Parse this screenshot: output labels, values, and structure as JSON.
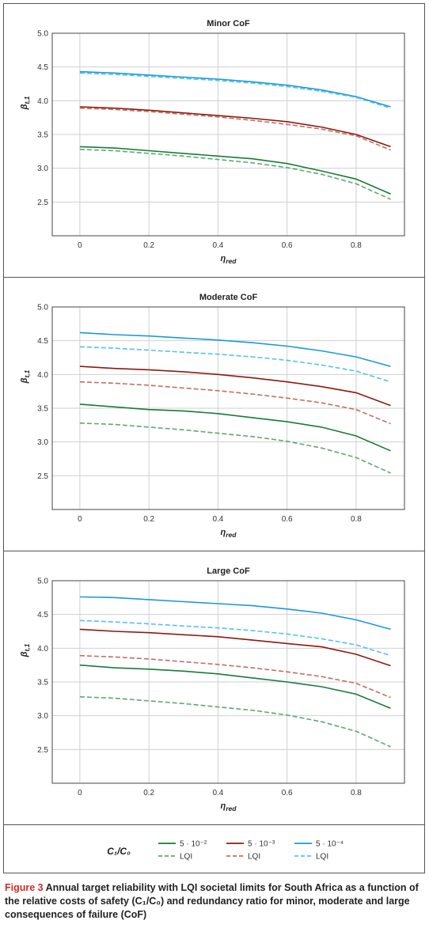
{
  "colors": {
    "green": "#1a7a3a",
    "green_lqi": "#5fa870",
    "red": "#8c1a10",
    "red_lqi": "#c07060",
    "blue": "#1a9ad9",
    "blue_lqi": "#55c0ee",
    "grid": "#cfcfcf",
    "caption_label": "#d12a2a"
  },
  "chart_data": [
    {
      "type": "line",
      "title": "Minor CoF",
      "xlabel": "η_red",
      "ylabel": "β_t,1",
      "xlim": [
        -0.08,
        0.94
      ],
      "ylim": [
        2.0,
        5.0
      ],
      "x_ticks": [
        "0",
        "0.2",
        "0.4",
        "0.6",
        "0.8"
      ],
      "y_ticks": [
        "2.5",
        "3.0",
        "3.5",
        "4.0",
        "4.5",
        "5.0"
      ],
      "grid": true,
      "x": [
        0,
        0.1,
        0.2,
        0.3,
        0.4,
        0.5,
        0.6,
        0.7,
        0.8,
        0.9
      ],
      "series": [
        {
          "name": "5 · 10⁻²",
          "style": "solid",
          "color": "green",
          "values": [
            3.32,
            3.3,
            3.26,
            3.22,
            3.18,
            3.14,
            3.07,
            2.96,
            2.84,
            2.62
          ]
        },
        {
          "name": "LQI",
          "style": "dashed",
          "color": "green_lqi",
          "values": [
            3.28,
            3.26,
            3.22,
            3.18,
            3.13,
            3.08,
            3.01,
            2.91,
            2.77,
            2.54
          ]
        },
        {
          "name": "5 · 10⁻³",
          "style": "solid",
          "color": "red",
          "values": [
            3.91,
            3.89,
            3.86,
            3.82,
            3.78,
            3.74,
            3.69,
            3.61,
            3.5,
            3.32
          ]
        },
        {
          "name": "LQI",
          "style": "dashed",
          "color": "red_lqi",
          "values": [
            3.89,
            3.87,
            3.84,
            3.8,
            3.76,
            3.71,
            3.65,
            3.58,
            3.48,
            3.27
          ]
        },
        {
          "name": "5 · 10⁻⁴",
          "style": "solid",
          "color": "blue",
          "values": [
            4.43,
            4.41,
            4.38,
            4.35,
            4.32,
            4.28,
            4.23,
            4.16,
            4.06,
            3.91
          ]
        },
        {
          "name": "LQI",
          "style": "dashed",
          "color": "blue_lqi",
          "values": [
            4.41,
            4.39,
            4.36,
            4.33,
            4.3,
            4.26,
            4.21,
            4.14,
            4.05,
            3.89
          ]
        }
      ]
    },
    {
      "type": "line",
      "title": "Moderate CoF",
      "xlabel": "η_red",
      "ylabel": "β_t,1",
      "xlim": [
        -0.08,
        0.94
      ],
      "ylim": [
        2.0,
        5.0
      ],
      "x_ticks": [
        "0",
        "0.2",
        "0.4",
        "0.6",
        "0.8"
      ],
      "y_ticks": [
        "2.5",
        "3.0",
        "3.5",
        "4.0",
        "4.5",
        "5.0"
      ],
      "grid": true,
      "x": [
        0,
        0.1,
        0.2,
        0.3,
        0.4,
        0.5,
        0.6,
        0.7,
        0.8,
        0.9
      ],
      "series": [
        {
          "name": "5 · 10⁻²",
          "style": "solid",
          "color": "green",
          "values": [
            3.56,
            3.52,
            3.48,
            3.46,
            3.42,
            3.36,
            3.3,
            3.22,
            3.09,
            2.87
          ]
        },
        {
          "name": "LQI",
          "style": "dashed",
          "color": "green_lqi",
          "values": [
            3.28,
            3.26,
            3.22,
            3.18,
            3.13,
            3.08,
            3.01,
            2.91,
            2.77,
            2.54
          ]
        },
        {
          "name": "5 · 10⁻³",
          "style": "solid",
          "color": "red",
          "values": [
            4.12,
            4.09,
            4.07,
            4.04,
            4.0,
            3.95,
            3.89,
            3.82,
            3.73,
            3.54
          ]
        },
        {
          "name": "LQI",
          "style": "dashed",
          "color": "red_lqi",
          "values": [
            3.89,
            3.87,
            3.84,
            3.8,
            3.76,
            3.71,
            3.65,
            3.58,
            3.48,
            3.27
          ]
        },
        {
          "name": "5 · 10⁻⁴",
          "style": "solid",
          "color": "blue",
          "values": [
            4.62,
            4.59,
            4.57,
            4.54,
            4.51,
            4.47,
            4.42,
            4.35,
            4.26,
            4.12
          ]
        },
        {
          "name": "LQI",
          "style": "dashed",
          "color": "blue_lqi",
          "values": [
            4.41,
            4.39,
            4.36,
            4.33,
            4.3,
            4.26,
            4.21,
            4.14,
            4.05,
            3.89
          ]
        }
      ]
    },
    {
      "type": "line",
      "title": "Large CoF",
      "xlabel": "η_red",
      "ylabel": "β_t,1",
      "xlim": [
        -0.08,
        0.94
      ],
      "ylim": [
        2.0,
        5.0
      ],
      "x_ticks": [
        "0",
        "0.2",
        "0.4",
        "0.6",
        "0.8"
      ],
      "y_ticks": [
        "2.5",
        "3.0",
        "3.5",
        "4.0",
        "4.5",
        "5.0"
      ],
      "grid": true,
      "x": [
        0,
        0.1,
        0.2,
        0.3,
        0.4,
        0.5,
        0.6,
        0.7,
        0.8,
        0.9
      ],
      "series": [
        {
          "name": "5 · 10⁻²",
          "style": "solid",
          "color": "green",
          "values": [
            3.75,
            3.71,
            3.69,
            3.66,
            3.62,
            3.56,
            3.5,
            3.43,
            3.32,
            3.11
          ]
        },
        {
          "name": "LQI",
          "style": "dashed",
          "color": "green_lqi",
          "values": [
            3.28,
            3.26,
            3.22,
            3.18,
            3.13,
            3.08,
            3.01,
            2.91,
            2.77,
            2.54
          ]
        },
        {
          "name": "5 · 10⁻³",
          "style": "solid",
          "color": "red",
          "values": [
            4.28,
            4.25,
            4.23,
            4.2,
            4.17,
            4.12,
            4.07,
            4.02,
            3.91,
            3.74
          ]
        },
        {
          "name": "LQI",
          "style": "dashed",
          "color": "red_lqi",
          "values": [
            3.89,
            3.87,
            3.84,
            3.8,
            3.76,
            3.71,
            3.65,
            3.58,
            3.48,
            3.27
          ]
        },
        {
          "name": "5 · 10⁻⁴",
          "style": "solid",
          "color": "blue",
          "values": [
            4.76,
            4.75,
            4.72,
            4.69,
            4.66,
            4.63,
            4.58,
            4.52,
            4.42,
            4.28
          ]
        },
        {
          "name": "LQI",
          "style": "dashed",
          "color": "blue_lqi",
          "values": [
            4.41,
            4.39,
            4.36,
            4.33,
            4.3,
            4.26,
            4.21,
            4.14,
            4.05,
            3.89
          ]
        }
      ]
    }
  ],
  "legend": {
    "title": "C₁/C₀",
    "entries": [
      {
        "label": "5 · 10⁻²",
        "style": "solid",
        "color": "green"
      },
      {
        "label": "5 · 10⁻³",
        "style": "solid",
        "color": "red"
      },
      {
        "label": "5 · 10⁻⁴",
        "style": "solid",
        "color": "blue"
      },
      {
        "label": "LQI",
        "style": "dashed",
        "color": "green_lqi"
      },
      {
        "label": "LQI",
        "style": "dashed",
        "color": "red_lqi"
      },
      {
        "label": "LQI",
        "style": "dashed",
        "color": "blue_lqi"
      }
    ]
  },
  "caption": {
    "label": "Figure 3",
    "text": "Annual target reliability with LQI societal limits for South Africa as a function of the relative costs of safety (C₁/C₀) and redundancy ratio for minor, moderate and large consequences of failure (CoF)"
  }
}
